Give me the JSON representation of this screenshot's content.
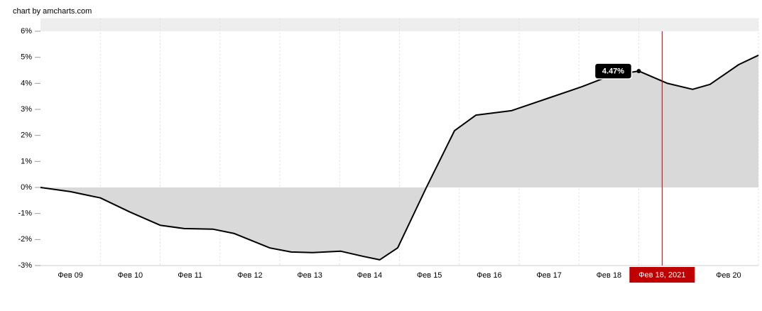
{
  "credit": "chart by amcharts.com",
  "chart_data": {
    "type": "area",
    "x": [
      0,
      0.5,
      1.0,
      1.5,
      2.0,
      2.4,
      2.88,
      3.24,
      3.83,
      4.19,
      4.55,
      5.02,
      5.38,
      5.67,
      5.97,
      6.45,
      6.92,
      7.28,
      7.87,
      8.46,
      9.05,
      9.53,
      10.0,
      10.48,
      10.9,
      11.19,
      11.67,
      12
    ],
    "values": [
      0,
      -0.16,
      -0.4,
      -0.95,
      -1.45,
      -1.58,
      -1.6,
      -1.77,
      -2.32,
      -2.48,
      -2.5,
      -2.45,
      -2.64,
      -2.78,
      -2.32,
      0,
      2.18,
      2.78,
      2.95,
      3.41,
      3.87,
      4.3,
      4.47,
      4.0,
      3.77,
      3.96,
      4.72,
      5.08
    ],
    "color": "#000000",
    "fill": "#d9d9d9",
    "xlim": [
      0,
      12
    ],
    "ylim": [
      -3,
      6.5
    ],
    "yticks": [
      {
        "value": -3,
        "label": "-3%"
      },
      {
        "value": -2,
        "label": "-2%"
      },
      {
        "value": -1,
        "label": "-1%"
      },
      {
        "value": 0,
        "label": "0%"
      },
      {
        "value": 1,
        "label": "1%"
      },
      {
        "value": 2,
        "label": "2%"
      },
      {
        "value": 3,
        "label": "3%"
      },
      {
        "value": 4,
        "label": "4%"
      },
      {
        "value": 5,
        "label": "5%"
      },
      {
        "value": 6,
        "label": "6%"
      }
    ],
    "xticks": [
      {
        "value": 0.5,
        "label": "Фев 09"
      },
      {
        "value": 1.5,
        "label": "Фев 10"
      },
      {
        "value": 2.5,
        "label": "Фев 11"
      },
      {
        "value": 3.5,
        "label": "Фев 12"
      },
      {
        "value": 4.5,
        "label": "Фев 13"
      },
      {
        "value": 5.5,
        "label": "Фев 14"
      },
      {
        "value": 6.5,
        "label": "Фев 15"
      },
      {
        "value": 7.5,
        "label": "Фев 16"
      },
      {
        "value": 8.5,
        "label": "Фев 17"
      },
      {
        "value": 9.5,
        "label": "Фев 18"
      },
      {
        "value": 11.5,
        "label": "Фев 20"
      }
    ],
    "tooltip": {
      "index": 22,
      "label": "4.47%"
    },
    "cursor": {
      "x": 10.39,
      "label": "Фев 18, 2021",
      "color": "#c00000"
    },
    "grid": true
  }
}
